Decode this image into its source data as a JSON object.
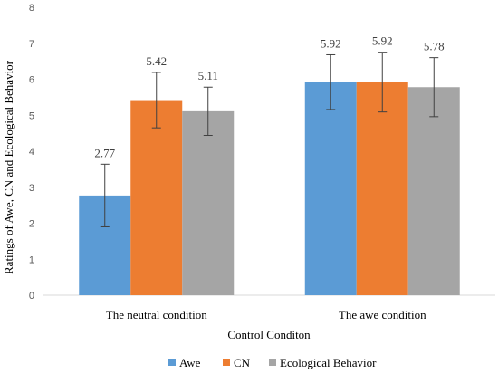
{
  "chart_data": {
    "type": "bar",
    "title": "",
    "xlabel": "Control Conditon",
    "ylabel": "Ratings of Awe, CN and Ecological Behavior",
    "ylim": [
      0,
      8
    ],
    "yticks": [
      0,
      1,
      2,
      3,
      4,
      5,
      6,
      7,
      8
    ],
    "categories": [
      "The neutral condition",
      "The awe condition"
    ],
    "series": [
      {
        "name": "Awe",
        "color": "#5B9BD5",
        "values": [
          2.77,
          5.92
        ],
        "labels": [
          "2.77",
          "5.92"
        ],
        "error": [
          0.87,
          0.76
        ]
      },
      {
        "name": "CN",
        "color": "#ED7D31",
        "values": [
          5.42,
          5.92
        ],
        "labels": [
          "5.42",
          "5.92"
        ],
        "error": [
          0.77,
          0.83
        ]
      },
      {
        "name": "Ecological Behavior",
        "color": "#A5A5A5",
        "values": [
          5.11,
          5.78
        ],
        "labels": [
          "5.11",
          "5.78"
        ],
        "error": [
          0.67,
          0.82
        ]
      }
    ],
    "legend_position": "bottom",
    "grid": false
  }
}
